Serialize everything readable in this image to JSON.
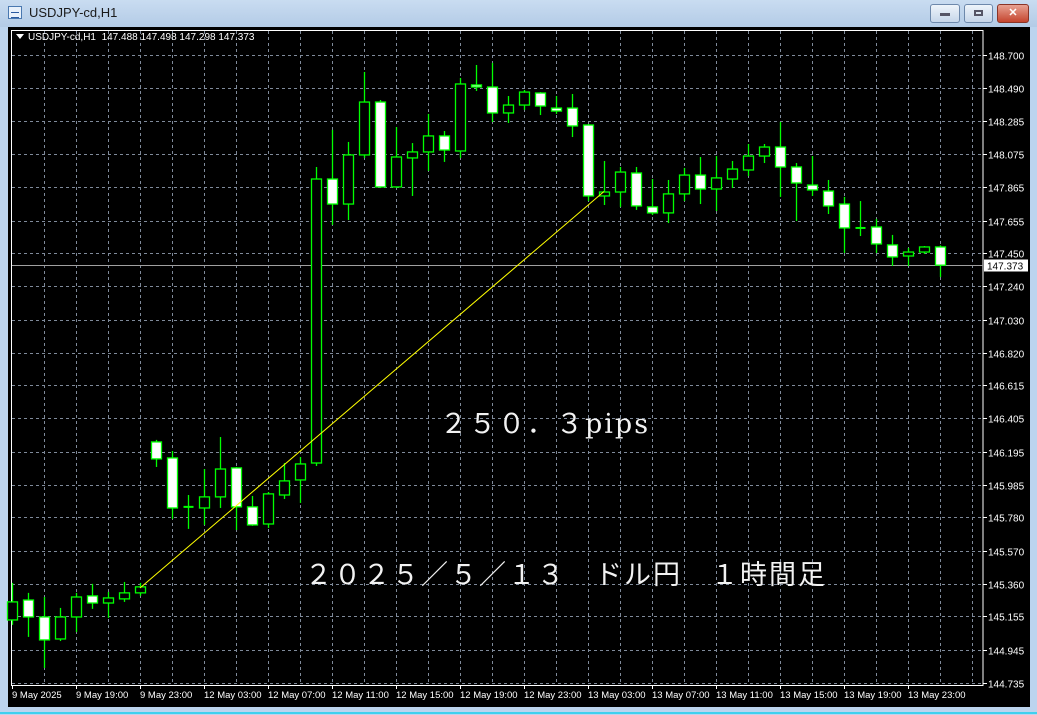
{
  "window": {
    "title": "USDJPY-cd,H1",
    "buttons": [
      "minimize",
      "maximize",
      "close"
    ],
    "close_glyph": "✕"
  },
  "chart_header": {
    "symbol": "USDJPY-cd,H1",
    "ohlc_text": "147.488 147.498 147.298 147.373"
  },
  "annotations": {
    "pips": "２５０．３pips",
    "caption": "２０２５／５／１３　ドル円　１時間足"
  },
  "colors": {
    "background": "#000000",
    "candle_outline": "#00ff00",
    "bull_fill": "#000000",
    "bear_fill": "#ffffff",
    "grid": "#7f8a9a",
    "trendline": "#ffff00",
    "axis_text": "#ffffff"
  },
  "chart_data": {
    "type": "candlestick",
    "timeframe": "H1",
    "symbol": "USDJPY-cd",
    "ylim": [
      144.735,
      148.7
    ],
    "grid": true,
    "y_ticks": [
      "148.700",
      "148.490",
      "148.285",
      "148.075",
      "147.865",
      "147.655",
      "147.450",
      "147.240",
      "147.030",
      "146.820",
      "146.615",
      "146.405",
      "146.195",
      "145.985",
      "145.780",
      "145.570",
      "145.360",
      "145.155",
      "144.945",
      "144.735"
    ],
    "x_tick_labels": [
      "9 May 2025",
      "9 May 19:00",
      "9 May 23:00",
      "12 May 03:00",
      "12 May 07:00",
      "12 May 11:00",
      "12 May 15:00",
      "12 May 19:00",
      "12 May 23:00",
      "13 May 03:00",
      "13 May 07:00",
      "13 May 11:00",
      "13 May 15:00",
      "13 May 19:00",
      "13 May 23:00"
    ],
    "current_price": "147.373",
    "candles": [
      [
        "9 May 15:00",
        145.133,
        145.367,
        145.102,
        145.247
      ],
      [
        "9 May 16:00",
        145.259,
        145.304,
        145.026,
        145.152
      ],
      [
        "9 May 17:00",
        145.152,
        145.278,
        144.83,
        145.007
      ],
      [
        "9 May 18:00",
        145.013,
        145.209,
        145.0,
        145.152
      ],
      [
        "9 May 19:00",
        145.152,
        145.304,
        145.057,
        145.278
      ],
      [
        "9 May 20:00",
        145.285,
        145.361,
        145.203,
        145.24
      ],
      [
        "9 May 21:00",
        145.24,
        145.31,
        145.146,
        145.272
      ],
      [
        "9 May 22:00",
        145.266,
        145.373,
        145.247,
        145.304
      ],
      [
        "9 May 23:00",
        145.304,
        145.367,
        145.285,
        145.342
      ],
      [
        "12 May 00:00",
        146.257,
        146.27,
        146.099,
        146.15
      ],
      [
        "12 May 01:00",
        146.156,
        146.2,
        145.771,
        145.84
      ],
      [
        "12 May 02:00",
        145.847,
        145.922,
        145.708,
        145.847
      ],
      [
        "12 May 03:00",
        145.84,
        146.086,
        145.733,
        145.91
      ],
      [
        "12 May 04:00",
        145.91,
        146.288,
        145.84,
        146.086
      ],
      [
        "12 May 05:00",
        146.093,
        146.099,
        145.701,
        145.847
      ],
      [
        "12 May 06:00",
        145.847,
        145.916,
        145.727,
        145.733
      ],
      [
        "12 May 07:00",
        145.739,
        145.941,
        145.714,
        145.929
      ],
      [
        "12 May 08:00",
        145.922,
        146.124,
        145.897,
        146.011
      ],
      [
        "12 May 09:00",
        146.017,
        146.162,
        145.872,
        146.118
      ],
      [
        "12 May 10:00",
        146.124,
        147.993,
        146.105,
        147.917
      ],
      [
        "12 May 11:00",
        147.917,
        148.227,
        147.627,
        147.759
      ],
      [
        "12 May 12:00",
        147.759,
        148.151,
        147.658,
        148.069
      ],
      [
        "12 May 13:00",
        148.069,
        148.593,
        148.05,
        148.403
      ],
      [
        "12 May 14:00",
        148.403,
        148.416,
        147.86,
        147.867
      ],
      [
        "12 May 15:00",
        147.867,
        148.245,
        147.86,
        148.056
      ],
      [
        "12 May 16:00",
        148.05,
        148.144,
        147.81,
        148.088
      ],
      [
        "12 May 17:00",
        148.088,
        148.328,
        147.968,
        148.189
      ],
      [
        "12 May 18:00",
        148.189,
        148.22,
        148.025,
        148.1
      ],
      [
        "12 May 19:00",
        148.094,
        148.555,
        148.05,
        148.517
      ],
      [
        "12 May 20:00",
        148.511,
        148.637,
        148.473,
        148.498
      ],
      [
        "12 May 21:00",
        148.498,
        148.65,
        148.277,
        148.334
      ],
      [
        "12 May 22:00",
        148.334,
        148.441,
        148.271,
        148.384
      ],
      [
        "12 May 23:00",
        148.384,
        148.479,
        148.353,
        148.466
      ],
      [
        "13 May 00:00",
        148.46,
        148.466,
        148.321,
        148.378
      ],
      [
        "13 May 01:00",
        148.365,
        148.441,
        148.328,
        148.346
      ],
      [
        "13 May 02:00",
        148.365,
        148.454,
        148.182,
        148.252
      ],
      [
        "13 May 03:00",
        148.258,
        148.264,
        147.778,
        147.81
      ],
      [
        "13 May 04:00",
        147.81,
        148.031,
        147.753,
        147.835
      ],
      [
        "13 May 05:00",
        147.835,
        147.993,
        147.741,
        147.961
      ],
      [
        "13 May 06:00",
        147.955,
        147.993,
        147.722,
        147.747
      ],
      [
        "13 May 07:00",
        147.741,
        147.917,
        147.69,
        147.703
      ],
      [
        "13 May 08:00",
        147.703,
        147.911,
        147.639,
        147.823
      ],
      [
        "13 May 09:00",
        147.823,
        147.987,
        147.778,
        147.942
      ],
      [
        "13 May 10:00",
        147.942,
        148.056,
        147.759,
        147.854
      ],
      [
        "13 May 11:00",
        147.854,
        148.062,
        147.715,
        147.924
      ],
      [
        "13 May 12:00",
        147.917,
        148.031,
        147.86,
        147.98
      ],
      [
        "13 May 13:00",
        147.974,
        148.138,
        147.936,
        148.062
      ],
      [
        "13 May 14:00",
        148.062,
        148.138,
        148.018,
        148.119
      ],
      [
        "13 May 15:00",
        148.119,
        148.277,
        147.804,
        147.993
      ],
      [
        "13 May 16:00",
        147.993,
        148.018,
        147.652,
        147.892
      ],
      [
        "13 May 17:00",
        147.879,
        148.062,
        147.81,
        147.848
      ],
      [
        "13 May 18:00",
        147.841,
        147.911,
        147.696,
        147.747
      ],
      [
        "13 May 19:00",
        147.759,
        147.804,
        147.45,
        147.608
      ],
      [
        "13 May 20:00",
        147.608,
        147.778,
        147.557,
        147.608
      ],
      [
        "13 May 21:00",
        147.614,
        147.665,
        147.45,
        147.507
      ],
      [
        "13 May 22:00",
        147.501,
        147.564,
        147.368,
        147.425
      ],
      [
        "13 May 23:00",
        147.431,
        147.482,
        147.368,
        147.456
      ],
      [
        "14 May 00:00",
        147.456,
        147.494,
        147.444,
        147.488
      ],
      [
        "14 May 01:00",
        147.488,
        147.498,
        147.298,
        147.373
      ]
    ],
    "trendline": {
      "from": [
        "9 May 23:00",
        145.335
      ],
      "to": [
        "13 May 04:00",
        147.838
      ]
    }
  }
}
